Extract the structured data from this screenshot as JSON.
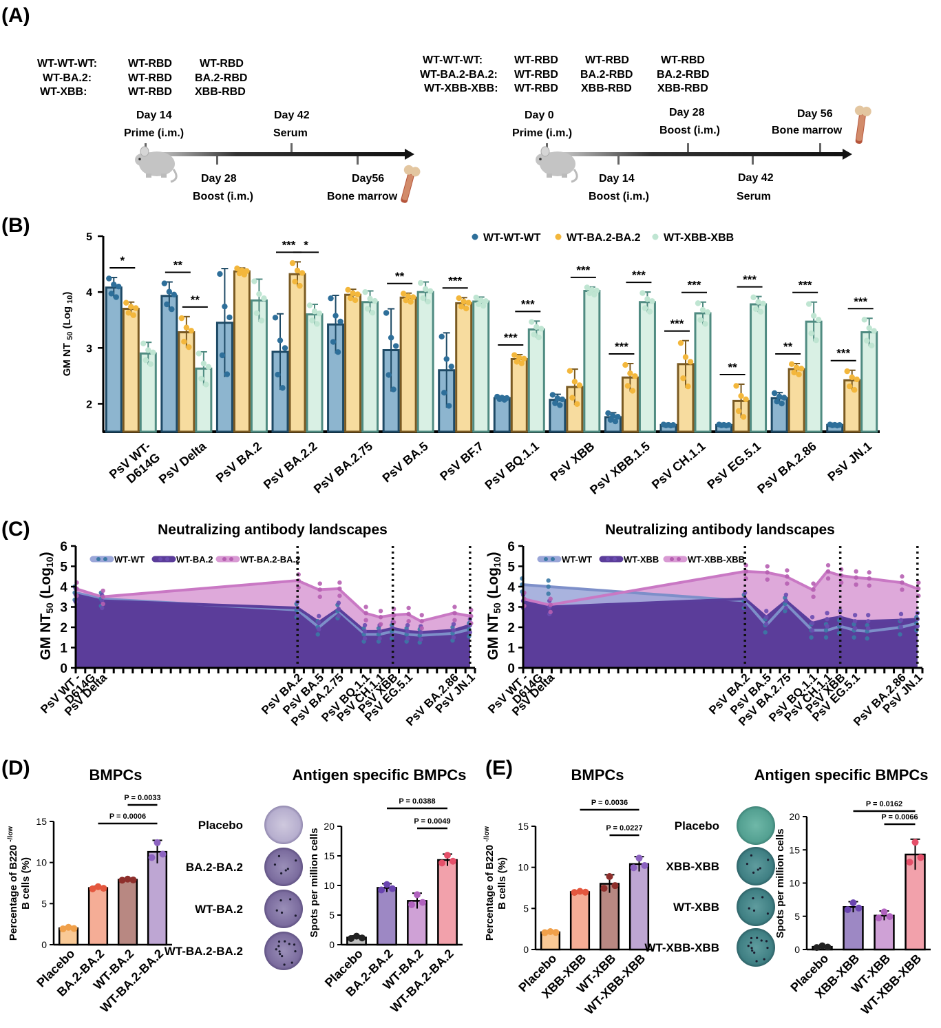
{
  "panel_labels": [
    "(A)",
    "(B)",
    "(C)",
    "(D)",
    "(E)"
  ],
  "panel_a": {
    "left": {
      "group_names": [
        "WT-WT-WT:",
        "WT-BA.2:",
        "WT-XBB:"
      ],
      "col1": [
        "WT-RBD",
        "WT-RBD",
        "WT-RBD"
      ],
      "col2": [
        "WT-RBD",
        "BA.2-RBD",
        "XBB-RBD"
      ],
      "events_above": [
        [
          "Day 14",
          "Prime (i.m.)"
        ],
        [
          "Day 42",
          "Serum"
        ]
      ],
      "events_below": [
        [
          "Day 28",
          "Boost (i.m.)"
        ],
        [
          "Day56",
          "Bone marrow"
        ]
      ]
    },
    "right": {
      "group_names": [
        "WT-WT-WT:",
        "WT-BA.2-BA.2:",
        "WT-XBB-XBB:"
      ],
      "col1": [
        "WT-RBD",
        "WT-RBD",
        "WT-RBD"
      ],
      "col2": [
        "WT-RBD",
        "BA.2-RBD",
        "XBB-RBD"
      ],
      "col3": [
        "WT-RBD",
        "BA.2-RBD",
        "XBB-RBD"
      ],
      "events_above": [
        [
          "Day 0",
          "Prime (i.m.)"
        ],
        [
          "Day 28",
          "Boost (i.m.)"
        ],
        [
          "Day 56",
          "Bone marrow"
        ]
      ],
      "events_below": [
        [
          "Day 14",
          "Boost (i.m.)"
        ],
        [
          "Day 42",
          "Serum"
        ]
      ]
    }
  },
  "chart_data": [
    {
      "id": "B",
      "type": "bar",
      "ylabel_main": "GM NT ",
      "ylabel_sub1": "50",
      "ylabel_mid": " (Log ",
      "ylabel_sub2": "10",
      "ylabel_end": ")",
      "ylim": [
        1.5,
        5
      ],
      "yticks": [
        "2",
        "3",
        "4",
        "5"
      ],
      "categories": [
        "PsV WT-\nD614G",
        "PsV Delta",
        "PsV BA.2",
        "PsV BA.2.2",
        "PsV BA.2.75",
        "PsV BA.5",
        "PsV BF.7",
        "PsV BQ.1.1",
        "PsV XBB",
        "PsV XBB.1.5",
        "PsV CH.1.1",
        "PsV EG.5.1",
        "PsV BA.2.86",
        "PsV JN.1"
      ],
      "series": [
        {
          "name": "WT-WT-WT",
          "color": "#8db5cf",
          "edge": "#1e4a66",
          "dot": "#2e6f9a",
          "values": [
            4.08,
            3.93,
            3.45,
            2.93,
            3.42,
            2.96,
            2.6,
            2.1,
            2.07,
            1.76,
            1.62,
            1.62,
            2.1,
            1.62
          ],
          "err": [
            0.18,
            0.25,
            0.97,
            0.68,
            0.52,
            0.74,
            0.67,
            0.03,
            0.1,
            0.08,
            0.01,
            0.01,
            0.1,
            0.01
          ]
        },
        {
          "name": "WT-BA.2-BA.2",
          "color": "#f7dc9f",
          "edge": "#7a5a22",
          "dot": "#f3b73c",
          "values": [
            3.7,
            3.28,
            4.37,
            4.32,
            3.95,
            3.9,
            3.8,
            2.8,
            2.3,
            2.47,
            2.71,
            2.05,
            2.62,
            2.42
          ],
          "err": [
            0.12,
            0.28,
            0.06,
            0.22,
            0.1,
            0.08,
            0.1,
            0.08,
            0.32,
            0.25,
            0.42,
            0.3,
            0.1,
            0.18
          ]
        },
        {
          "name": "WT-XBB-XBB",
          "color": "#d9f0e4",
          "edge": "#4f8b81",
          "dot": "#bfe5d2",
          "values": [
            2.9,
            2.63,
            3.85,
            3.6,
            3.82,
            4.0,
            3.83,
            3.33,
            4.02,
            3.82,
            3.62,
            3.78,
            3.47,
            3.28
          ],
          "err": [
            0.2,
            0.3,
            0.38,
            0.18,
            0.2,
            0.18,
            0.08,
            0.15,
            0.07,
            0.18,
            0.2,
            0.14,
            0.35,
            0.25
          ]
        }
      ],
      "significance": [
        {
          "cat": 0,
          "pair": "ab",
          "label": "*"
        },
        {
          "cat": 1,
          "pair": "ab",
          "label": "**"
        },
        {
          "cat": 1,
          "pair": "bc",
          "label": "**"
        },
        {
          "cat": 3,
          "pair": "ab",
          "label": "***"
        },
        {
          "cat": 3,
          "pair": "bc",
          "label": "*"
        },
        {
          "cat": 5,
          "pair": "ab",
          "label": "**"
        },
        {
          "cat": 6,
          "pair": "ab",
          "label": "***"
        },
        {
          "cat": 7,
          "pair": "ab",
          "label": "***"
        },
        {
          "cat": 7,
          "pair": "bc",
          "label": "***"
        },
        {
          "cat": 8,
          "pair": "bc",
          "label": "***"
        },
        {
          "cat": 9,
          "pair": "ab",
          "label": "***"
        },
        {
          "cat": 9,
          "pair": "bc",
          "label": "***"
        },
        {
          "cat": 10,
          "pair": "ab",
          "label": "***"
        },
        {
          "cat": 10,
          "pair": "bc",
          "label": "***"
        },
        {
          "cat": 11,
          "pair": "ab",
          "label": "**"
        },
        {
          "cat": 11,
          "pair": "bc",
          "label": "***"
        },
        {
          "cat": 12,
          "pair": "ab",
          "label": "**"
        },
        {
          "cat": 12,
          "pair": "bc",
          "label": "***"
        },
        {
          "cat": 13,
          "pair": "ab",
          "label": "***"
        },
        {
          "cat": 13,
          "pair": "bc",
          "label": "***"
        }
      ]
    },
    {
      "id": "C1",
      "type": "area",
      "title": "Neutralizing antibody landscapes",
      "ylabel": "GM NT",
      "ylabel_sub": "50",
      "ylabel_paren": "(Log",
      "ylabel_sub2": "10",
      "ylabel_close": ")",
      "ylim": [
        0,
        6
      ],
      "yticks": [
        "0",
        "1",
        "2",
        "3",
        "4",
        "5",
        "6"
      ],
      "x": [
        0,
        1.6,
        13.5,
        14.8,
        16.0,
        17.6,
        18.5,
        19.3,
        20.2,
        21.0,
        23.0,
        24.0
      ],
      "xlim": [
        0,
        24.3
      ],
      "xtick_labels": [
        {
          "x": 0,
          "text": "PsV WT -"
        },
        {
          "x": 0.9,
          "text": "D614G"
        },
        {
          "x": 1.6,
          "text": "PsV Delta"
        },
        {
          "x": 13.5,
          "text": "PsV BA.2"
        },
        {
          "x": 14.8,
          "text": "PsV BA.5"
        },
        {
          "x": 16.0,
          "text": "PsV BA.2.75"
        },
        {
          "x": 17.6,
          "text": "PsV BQ.1.1"
        },
        {
          "x": 18.5,
          "text": "PsV CH.1.1"
        },
        {
          "x": 19.3,
          "text": "PsV XBB"
        },
        {
          "x": 20.2,
          "text": "PsV EG.5.1"
        },
        {
          "x": 23.0,
          "text": "PsV BA.2.86"
        },
        {
          "x": 24.0,
          "text": "PsV JN.1"
        }
      ],
      "dotted_x": [
        13.5,
        19.3,
        24.0
      ],
      "series": [
        {
          "name": "WT-WT",
          "line": "#7d8fc9",
          "fill": "#9aa6d8",
          "dot": "#3b79a5",
          "values": [
            3.7,
            3.4,
            2.85,
            2.0,
            2.8,
            1.65,
            1.65,
            1.8,
            1.65,
            1.6,
            1.7,
            1.9
          ]
        },
        {
          "name": "WT-BA.2",
          "line": "#5a3e9c",
          "fill": "#5b3d9a",
          "dot": "#6a4cb0",
          "values": [
            3.6,
            3.3,
            2.95,
            2.25,
            2.9,
            1.8,
            1.8,
            1.95,
            1.8,
            1.75,
            1.85,
            2.1
          ]
        },
        {
          "name": "WT-BA.2-BA.2",
          "line": "#c978c4",
          "fill": "#d89ad3",
          "dot": "#b65fb1",
          "values": [
            3.9,
            3.5,
            4.3,
            3.85,
            3.9,
            2.7,
            2.5,
            2.6,
            2.65,
            2.3,
            2.7,
            2.55
          ]
        }
      ]
    },
    {
      "id": "C2",
      "type": "area",
      "title": "Neutralizing antibody landscapes",
      "ylabel": "GM NT",
      "ylabel_sub": "50",
      "ylabel_paren": "(Log",
      "ylabel_sub2": "10",
      "ylabel_close": ")",
      "ylim": [
        0,
        6
      ],
      "yticks": [
        "0",
        "1",
        "2",
        "3",
        "4",
        "5",
        "6"
      ],
      "x": [
        0,
        1.6,
        13.5,
        14.8,
        16.0,
        17.6,
        18.5,
        19.3,
        20.2,
        21.0,
        23.0,
        24.0
      ],
      "xlim": [
        0,
        24.3
      ],
      "xtick_labels": [
        {
          "x": 0,
          "text": "PsV WT -"
        },
        {
          "x": 0.9,
          "text": "D614G"
        },
        {
          "x": 1.6,
          "text": "PsV Delta"
        },
        {
          "x": 13.5,
          "text": "PsV BA.2"
        },
        {
          "x": 14.8,
          "text": "PsV BA.5"
        },
        {
          "x": 16.0,
          "text": "PsV BA.2.75"
        },
        {
          "x": 17.6,
          "text": "PsV BQ.1.1"
        },
        {
          "x": 18.5,
          "text": "PsV CH.1.1"
        },
        {
          "x": 19.3,
          "text": "PsV XBB"
        },
        {
          "x": 20.2,
          "text": "PsV EG.5.1"
        },
        {
          "x": 23.0,
          "text": "PsV BA.2.86"
        },
        {
          "x": 24.0,
          "text": "PsV JN.1"
        }
      ],
      "dotted_x": [
        13.5,
        19.3,
        24.0
      ],
      "series": [
        {
          "name": "WT-WT",
          "line": "#7d8fc9",
          "fill": "#9aa6d8",
          "dot": "#3b79a5",
          "values": [
            4.1,
            4.0,
            3.3,
            2.1,
            3.15,
            1.85,
            1.85,
            2.05,
            1.85,
            1.8,
            2.0,
            2.2
          ]
        },
        {
          "name": "WT-XBB",
          "line": "#5a3e9c",
          "fill": "#5b3d9a",
          "dot": "#6a4cb0",
          "values": [
            3.3,
            3.0,
            3.4,
            2.5,
            3.3,
            2.2,
            2.4,
            2.5,
            2.3,
            2.3,
            2.35,
            2.4
          ]
        },
        {
          "name": "WT-XBB-XBB",
          "line": "#c978c4",
          "fill": "#d89ad3",
          "dot": "#b65fb1",
          "values": [
            3.4,
            3.1,
            4.75,
            4.7,
            4.5,
            3.85,
            4.75,
            4.55,
            4.45,
            4.4,
            4.2,
            3.9
          ]
        }
      ]
    },
    {
      "id": "D-left",
      "type": "bar",
      "title": "BMPCs",
      "ylabel": "Percentage of B220",
      "ylabel_sup": "-/low",
      "ylabel2": "B cells (%)",
      "ylim": [
        0,
        15
      ],
      "yticks": [
        "0",
        "5",
        "10",
        "15"
      ],
      "categories": [
        "Placebo",
        "BA.2-BA.2",
        "WT-BA.2",
        "WT-BA.2-BA.2"
      ],
      "values": [
        2.0,
        6.9,
        7.9,
        11.3
      ],
      "err": [
        0.15,
        0.2,
        0.1,
        1.4
      ],
      "colors": [
        "#f9c995",
        "#f5ad96",
        "#b88882",
        "#bea6d3"
      ],
      "dot_colors": [
        "#f0a04a",
        "#e4573e",
        "#8e2f2c",
        "#8c63c0"
      ],
      "pvalues": [
        {
          "from": 1,
          "to": 3,
          "label": "P = 0.0006"
        },
        {
          "from": 2,
          "to": 3,
          "label": "P = 0.0033"
        }
      ]
    },
    {
      "id": "D-right",
      "type": "bar",
      "title": "Antigen specific BMPCs",
      "ylabel": "Spots per million cells",
      "ylim": [
        0,
        20
      ],
      "yticks": [
        "0",
        "5",
        "10",
        "15",
        "20"
      ],
      "categories": [
        "Placebo",
        "BA.2-BA.2",
        "WT-BA.2",
        "WT-BA.2-BA.2"
      ],
      "values": [
        1.2,
        9.6,
        7.4,
        14.3
      ],
      "err": [
        0.3,
        0.7,
        1.3,
        1.0
      ],
      "colors": [
        "#c0c0c0",
        "#9d88c4",
        "#cfa1d6",
        "#f2a1ab"
      ],
      "dot_colors": [
        "#222222",
        "#6a45b0",
        "#b062be",
        "#e5506a"
      ],
      "pvalues": [
        {
          "from": 1,
          "to": 3,
          "label": "P = 0.0388"
        },
        {
          "from": 2,
          "to": 3,
          "label": "P = 0.0049"
        }
      ],
      "well_labels": [
        "Placebo",
        "BA.2-BA.2",
        "WT-BA.2",
        "WT-BA.2-BA.2"
      ]
    },
    {
      "id": "E-left",
      "type": "bar",
      "title": "BMPCs",
      "ylabel": "Percentage of B220",
      "ylabel_sup": "-/low",
      "ylabel2": "B cells (%)",
      "ylim": [
        0,
        15
      ],
      "yticks": [
        "0",
        "5",
        "10",
        "15"
      ],
      "categories": [
        "Placebo",
        "XBB-XBB",
        "WT-XBB",
        "WT-XBB-XBB"
      ],
      "values": [
        2.1,
        7.0,
        8.0,
        10.4
      ],
      "err": [
        0.1,
        0.1,
        1.1,
        0.9
      ],
      "colors": [
        "#f9c995",
        "#f5ad96",
        "#b88882",
        "#bea6d3"
      ],
      "dot_colors": [
        "#f0a04a",
        "#e4573e",
        "#8e2f2c",
        "#8c63c0"
      ],
      "pvalues": [
        {
          "from": 1,
          "to": 3,
          "label": "P = 0.0036"
        },
        {
          "from": 2,
          "to": 3,
          "label": "P = 0.0227"
        }
      ]
    },
    {
      "id": "E-right",
      "type": "bar",
      "title": "Antigen specific BMPCs",
      "ylabel": "Spots per million cells",
      "ylim": [
        0,
        20
      ],
      "yticks": [
        "0",
        "5",
        "10",
        "15",
        "20"
      ],
      "categories": [
        "Placebo",
        "XBB-XBB",
        "WT-XBB",
        "WT-XBB-XBB"
      ],
      "values": [
        0.4,
        6.4,
        5.1,
        14.3
      ],
      "err": [
        0.2,
        0.8,
        0.7,
        2.3
      ],
      "colors": [
        "#c0c0c0",
        "#9d88c4",
        "#cfa1d6",
        "#f2a1ab"
      ],
      "dot_colors": [
        "#222222",
        "#6a45b0",
        "#b062be",
        "#e5506a"
      ],
      "pvalues": [
        {
          "from": 1,
          "to": 3,
          "label": "P = 0.0162"
        },
        {
          "from": 2,
          "to": 3,
          "label": "P = 0.0066"
        }
      ],
      "well_labels": [
        "Placebo",
        "XBB-XBB",
        "WT-XBB",
        "WT-XBB-XBB"
      ]
    }
  ]
}
